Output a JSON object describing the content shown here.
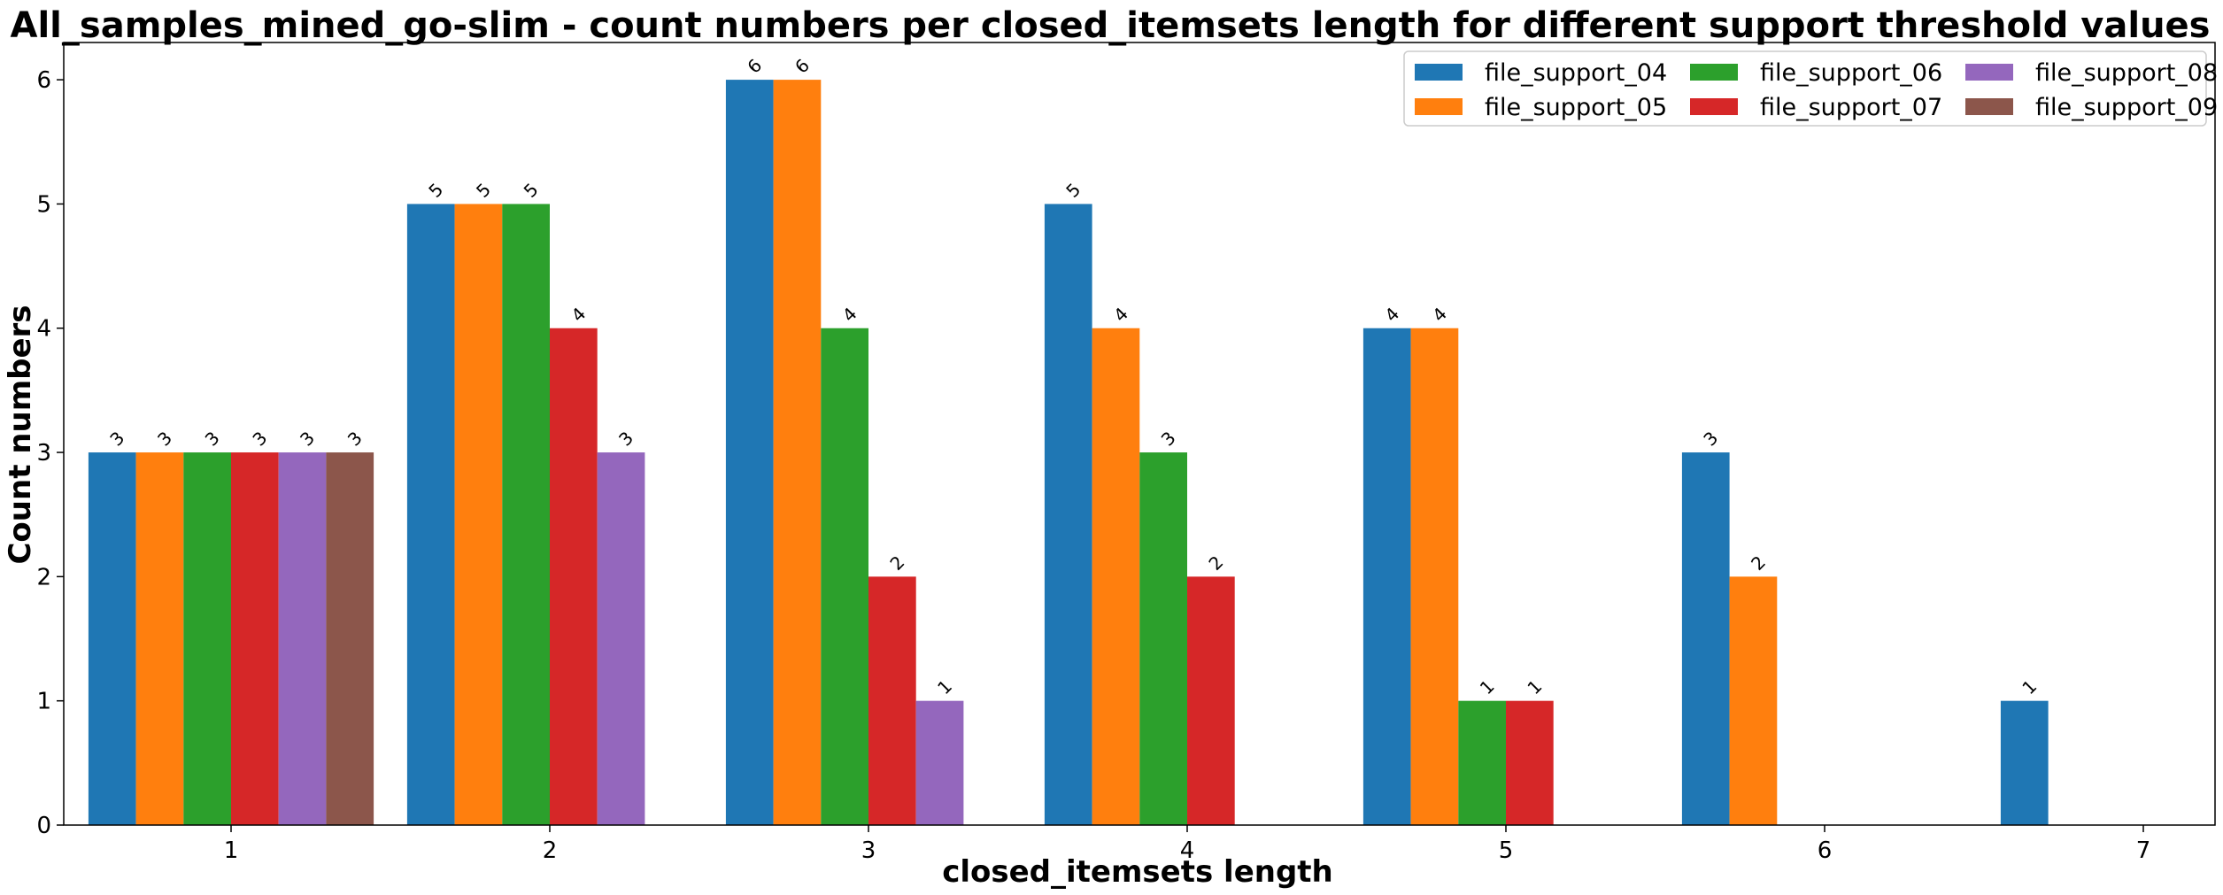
{
  "chart_data": {
    "type": "bar",
    "title": "All_samples_mined_go-slim - count numbers per closed_itemsets length for different support threshold values",
    "xlabel": "closed_itemsets length",
    "ylabel": "Count numbers",
    "categories": [
      "1",
      "2",
      "3",
      "4",
      "5",
      "6",
      "7"
    ],
    "ylim": [
      0,
      6.3
    ],
    "yticks": [
      "0",
      "1",
      "2",
      "3",
      "4",
      "5",
      "6"
    ],
    "grid": false,
    "legend_position": "top-right",
    "legend_columns": 3,
    "series": [
      {
        "name": "file_support_04",
        "color": "#1f77b4",
        "values": [
          3,
          5,
          6,
          5,
          4,
          3,
          1
        ]
      },
      {
        "name": "file_support_05",
        "color": "#ff7f0e",
        "values": [
          3,
          5,
          6,
          4,
          4,
          2,
          null
        ]
      },
      {
        "name": "file_support_06",
        "color": "#2ca02c",
        "values": [
          3,
          5,
          4,
          3,
          1,
          null,
          null
        ]
      },
      {
        "name": "file_support_07",
        "color": "#d62728",
        "values": [
          3,
          4,
          2,
          2,
          1,
          null,
          null
        ]
      },
      {
        "name": "file_support_08",
        "color": "#9467bd",
        "values": [
          3,
          3,
          1,
          null,
          null,
          null,
          null
        ]
      },
      {
        "name": "file_support_09",
        "color": "#8c564b",
        "values": [
          3,
          null,
          null,
          null,
          null,
          null,
          null
        ]
      }
    ]
  }
}
